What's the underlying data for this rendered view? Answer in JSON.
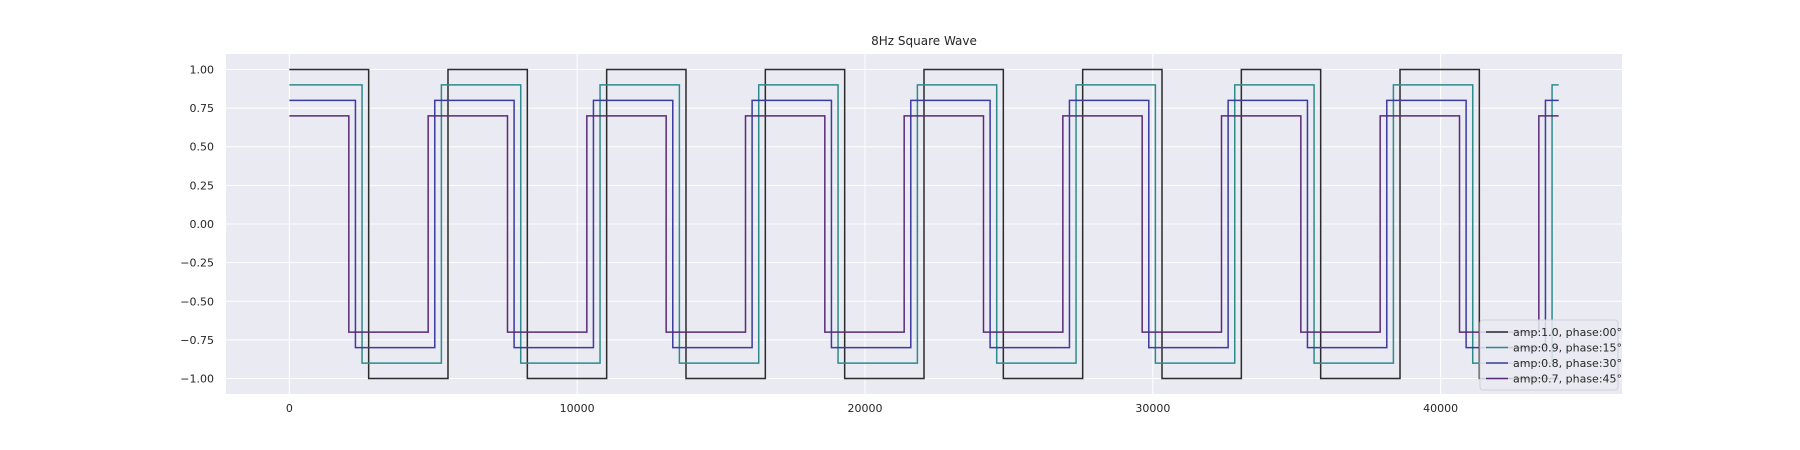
{
  "chart_data": {
    "type": "line",
    "title": "8Hz Square Wave",
    "xlabel": "",
    "ylabel": "",
    "xlim": [
      -2200,
      46300
    ],
    "ylim": [
      -1.1,
      1.1
    ],
    "x_ticks": [
      0,
      10000,
      20000,
      30000,
      40000
    ],
    "x_tick_labels": [
      "0",
      "10000",
      "20000",
      "30000",
      "40000"
    ],
    "y_ticks": [
      1.0,
      0.75,
      0.5,
      0.25,
      0.0,
      -0.25,
      -0.5,
      -0.75,
      -1.0
    ],
    "y_tick_labels": [
      "1.00",
      "0.75",
      "0.50",
      "0.25",
      "0.00",
      "−0.25",
      "−0.50",
      "−0.75",
      "−1.00"
    ],
    "grid": true,
    "legend_position": "lower right",
    "period_samples": 5512.5,
    "x_end": 44100,
    "series": [
      {
        "name": "amp:1.0, phase:00°",
        "amplitude": 1.0,
        "phase_deg": 0,
        "color": "#2b2b2b"
      },
      {
        "name": "amp:0.9, phase:15°",
        "amplitude": 0.9,
        "phase_deg": 15,
        "color": "#2e8b8b"
      },
      {
        "name": "amp:0.8, phase:30°",
        "amplitude": 0.8,
        "phase_deg": 30,
        "color": "#3b3aa0"
      },
      {
        "name": "amp:0.7, phase:45°",
        "amplitude": 0.7,
        "phase_deg": 45,
        "color": "#5a2a78"
      }
    ]
  }
}
